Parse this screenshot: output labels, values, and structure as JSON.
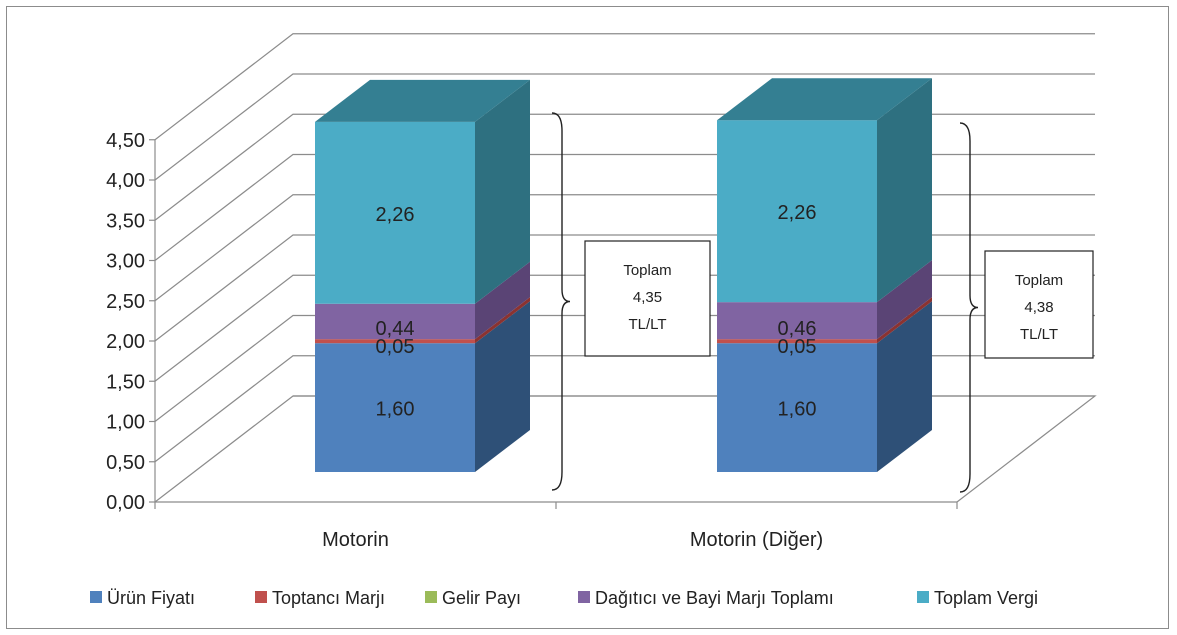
{
  "chart_data": {
    "type": "bar",
    "stacked": true,
    "three_d": true,
    "categories": [
      "Motorin",
      "Motorin (Diğer)"
    ],
    "series": [
      {
        "name": "Ürün Fiyatı",
        "color": "#4F81BD",
        "side_color": "#2E5077",
        "values": [
          1.6,
          1.6
        ],
        "labels": [
          "1,60",
          "1,60"
        ]
      },
      {
        "name": "Toptancı Marjı",
        "color": "#C0504D",
        "side_color": "#8B3331",
        "values": [
          0.05,
          0.05
        ],
        "labels": [
          "0,05",
          "0,05"
        ]
      },
      {
        "name": "Gelir Payı",
        "color": "#9BBB59",
        "side_color": "#6E8A3C",
        "values": [
          0.0,
          0.0
        ],
        "labels": [
          "",
          ""
        ]
      },
      {
        "name": "Dağıtıcı ve Bayi Marjı Toplamı",
        "color": "#8064A2",
        "side_color": "#5A4475",
        "values": [
          0.44,
          0.46
        ],
        "labels": [
          "0,44",
          "0,46"
        ]
      },
      {
        "name": "Toplam Vergi",
        "color": "#4BACC6",
        "side_color": "#2E7080",
        "top_color": "#347F92",
        "values": [
          2.26,
          2.26
        ],
        "labels": [
          "2,26",
          "2,26"
        ]
      }
    ],
    "y_ticks": [
      "0,00",
      "0,50",
      "1,00",
      "1,50",
      "2,00",
      "2,50",
      "3,00",
      "3,50",
      "4,00",
      "4,50"
    ],
    "ylim": [
      0,
      4.5
    ],
    "grid": true,
    "legend_position": "bottom",
    "annotations": [
      {
        "category": "Motorin",
        "lines": [
          "Toplam",
          "4,35",
          "TL/LT"
        ]
      },
      {
        "category": "Motorin (Diğer)",
        "lines": [
          "Toplam",
          "4,38",
          "TL/LT"
        ]
      }
    ]
  }
}
